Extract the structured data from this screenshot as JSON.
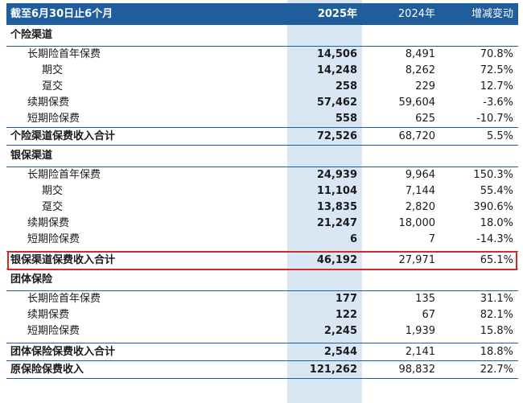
{
  "header": {
    "label": "截至6月30日止6个月",
    "col_2025": "2025年",
    "col_2024": "2024年",
    "col_change": "增减变动"
  },
  "sections": {
    "individual": {
      "title": "个险渠道",
      "rows": [
        {
          "label": "长期险首年保费",
          "v2025": "14,506",
          "v2024": "8,491",
          "change": "70.8%"
        },
        {
          "label": "期交",
          "v2025": "14,248",
          "v2024": "8,262",
          "change": "72.5%"
        },
        {
          "label": "趸交",
          "v2025": "258",
          "v2024": "229",
          "change": "12.7%"
        },
        {
          "label": "续期保费",
          "v2025": "57,462",
          "v2024": "59,604",
          "change": "-3.6%"
        },
        {
          "label": "短期险保费",
          "v2025": "558",
          "v2024": "625",
          "change": "-10.7%"
        }
      ],
      "total": {
        "label": "个险渠道保费收入合计",
        "v2025": "72,526",
        "v2024": "68,720",
        "change": "5.5%"
      }
    },
    "bancassurance": {
      "title": "银保渠道",
      "rows": [
        {
          "label": "长期险首年保费",
          "v2025": "24,939",
          "v2024": "9,964",
          "change": "150.3%"
        },
        {
          "label": "期交",
          "v2025": "11,104",
          "v2024": "7,144",
          "change": "55.4%"
        },
        {
          "label": "趸交",
          "v2025": "13,835",
          "v2024": "2,820",
          "change": "390.6%"
        },
        {
          "label": "续期保费",
          "v2025": "21,247",
          "v2024": "18,000",
          "change": "18.0%"
        },
        {
          "label": "短期险保费",
          "v2025": "6",
          "v2024": "7",
          "change": "-14.3%"
        }
      ],
      "total": {
        "label": "银保渠道保费收入合计",
        "v2025": "46,192",
        "v2024": "27,971",
        "change": "65.1%"
      }
    },
    "group": {
      "title": "团体保险",
      "rows": [
        {
          "label": "长期险首年保费",
          "v2025": "177",
          "v2024": "135",
          "change": "31.1%"
        },
        {
          "label": "续期保费",
          "v2025": "122",
          "v2024": "67",
          "change": "82.1%"
        },
        {
          "label": "短期险保费",
          "v2025": "2,245",
          "v2024": "1,939",
          "change": "15.8%"
        }
      ],
      "total": {
        "label": "团体保险保费收入合计",
        "v2025": "2,544",
        "v2024": "2,141",
        "change": "18.8%"
      }
    }
  },
  "grand_total": {
    "label": "原保险保费收入",
    "v2025": "121,262",
    "v2024": "98,832",
    "change": "22.7%"
  },
  "colors": {
    "header_bg": "#1f5d9c",
    "highlight_col": "#d9e7f4",
    "emphasis_box": "#d42a2a"
  }
}
